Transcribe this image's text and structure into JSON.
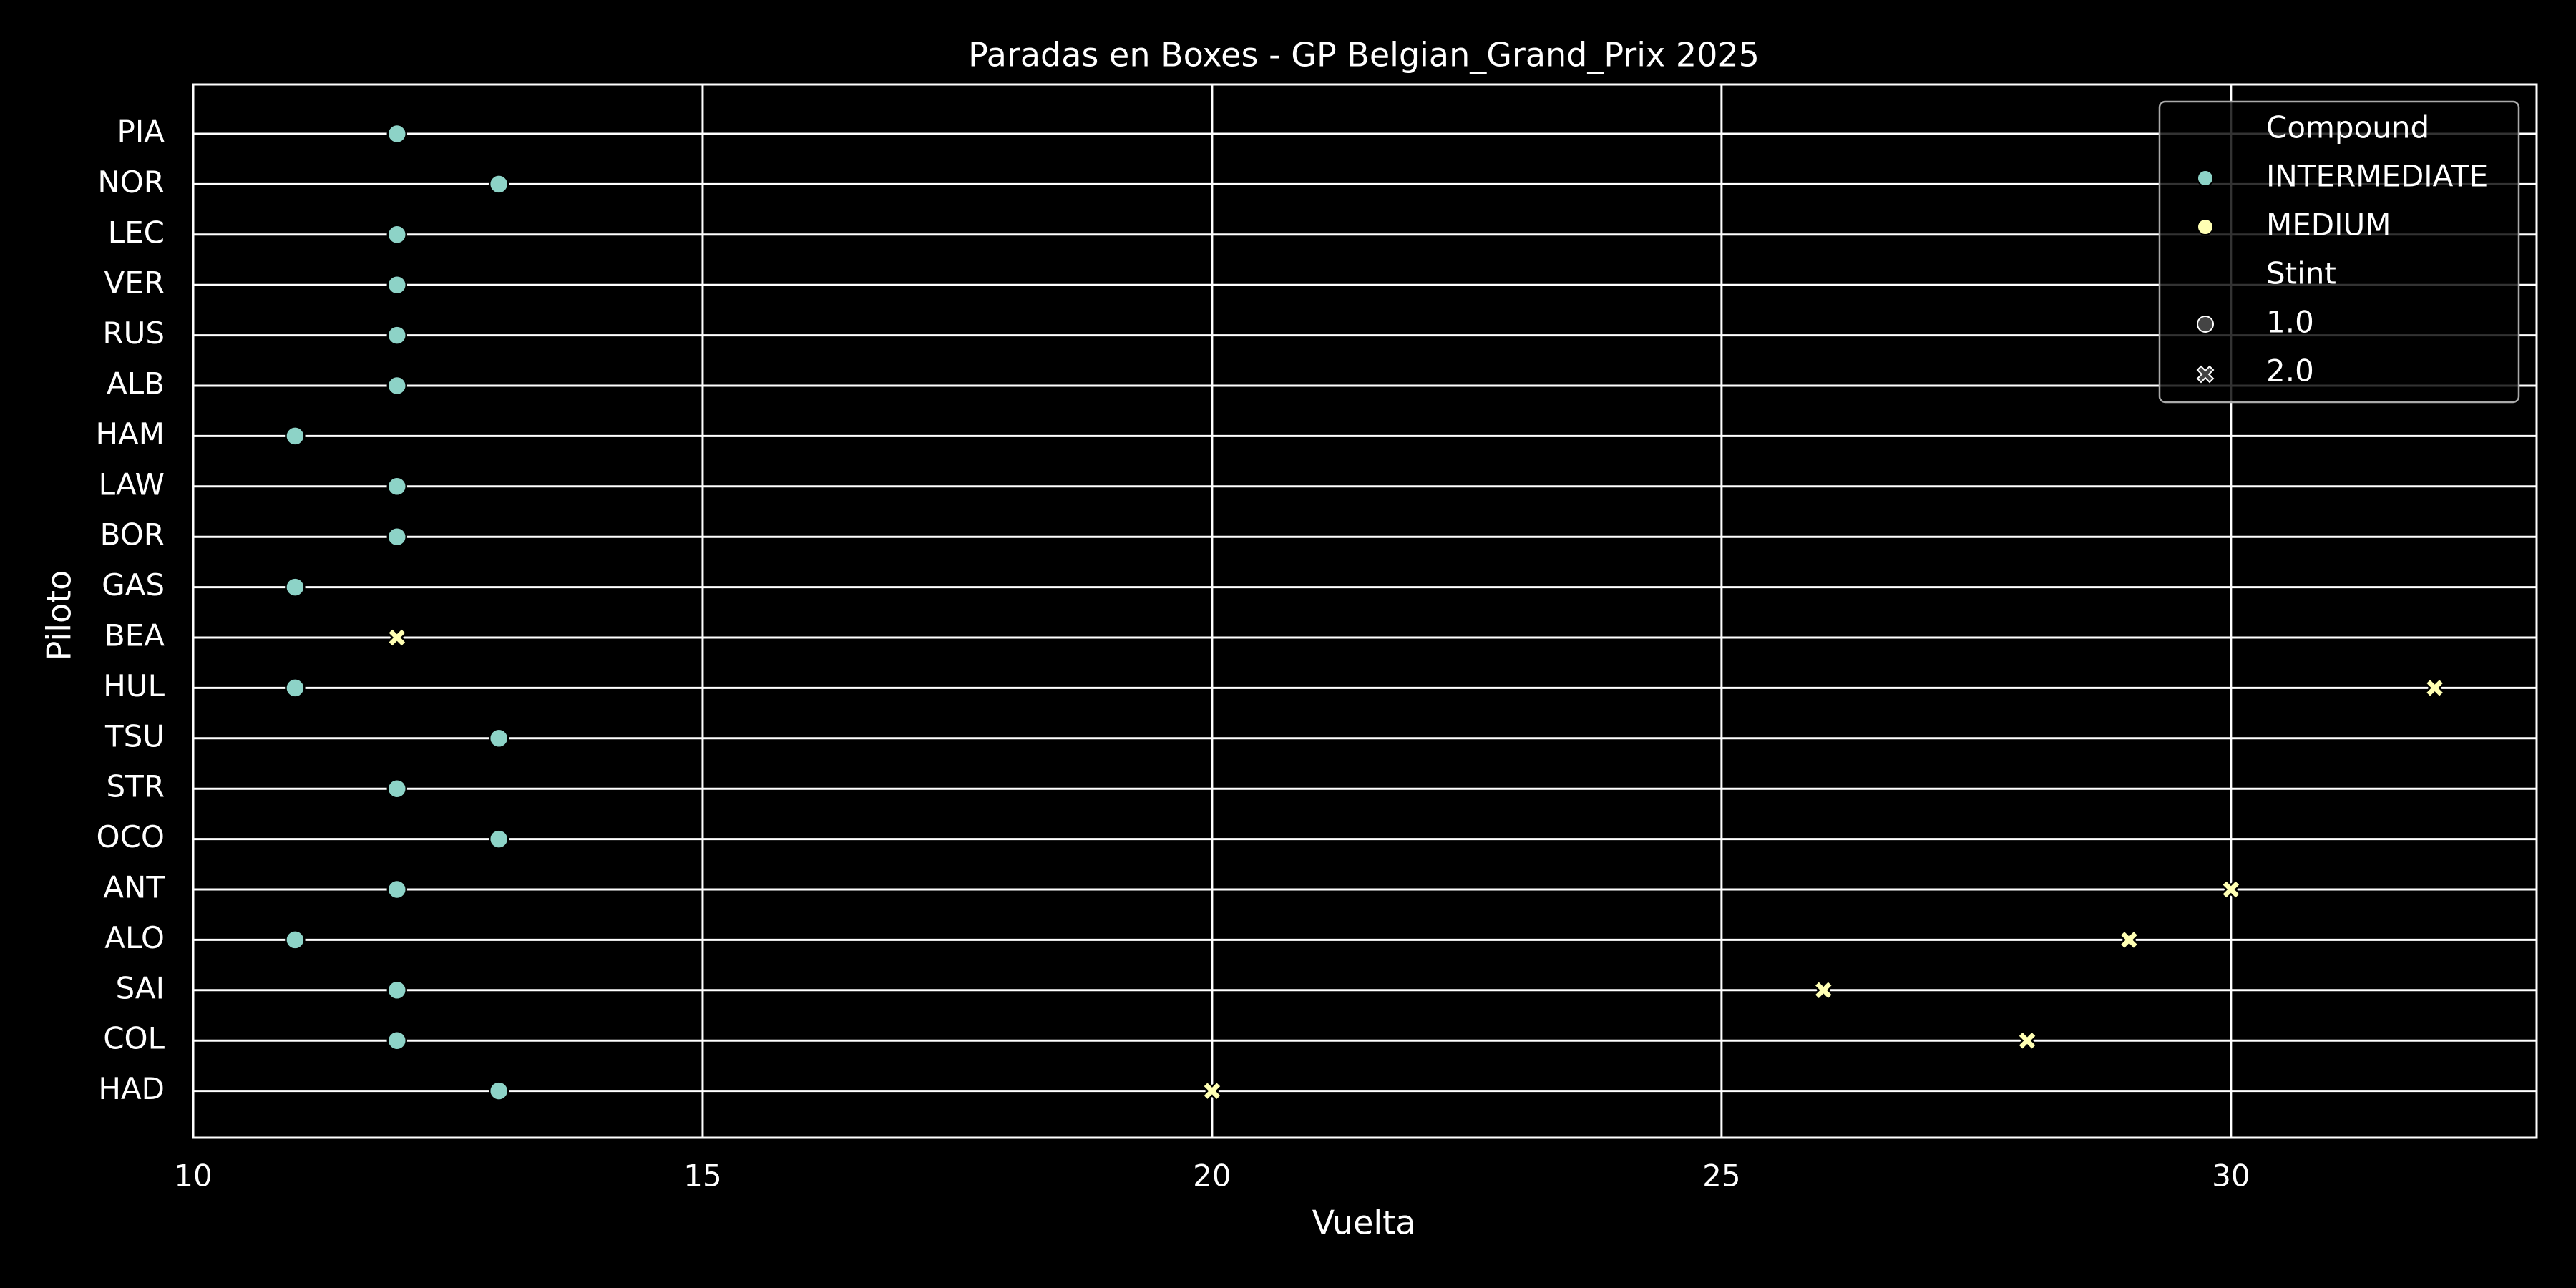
{
  "chart_data": {
    "type": "scatter",
    "title": "Paradas en Boxes - GP Belgian_Grand_Prix 2025",
    "xlabel": "Vuelta",
    "ylabel": "Piloto",
    "xlim": [
      10,
      33
    ],
    "xticks": [
      10,
      15,
      20,
      25,
      30
    ],
    "grid": true,
    "legend_position": "top-right",
    "categories": [
      "PIA",
      "NOR",
      "LEC",
      "VER",
      "RUS",
      "ALB",
      "HAM",
      "LAW",
      "BOR",
      "GAS",
      "BEA",
      "HUL",
      "TSU",
      "STR",
      "OCO",
      "ANT",
      "ALO",
      "SAI",
      "COL",
      "HAD"
    ],
    "legend": {
      "hue_title": "Compound",
      "style_title": "Stint",
      "compounds": [
        {
          "name": "INTERMEDIATE",
          "color": "#8dd3c7"
        },
        {
          "name": "MEDIUM",
          "color": "#ffffb3"
        }
      ],
      "stints": [
        {
          "name": "1.0",
          "marker": "circle"
        },
        {
          "name": "2.0",
          "marker": "x"
        }
      ]
    },
    "points": [
      {
        "driver": "PIA",
        "lap": 12,
        "compound": "INTERMEDIATE",
        "stint": "1.0"
      },
      {
        "driver": "NOR",
        "lap": 13,
        "compound": "INTERMEDIATE",
        "stint": "1.0"
      },
      {
        "driver": "LEC",
        "lap": 12,
        "compound": "INTERMEDIATE",
        "stint": "1.0"
      },
      {
        "driver": "VER",
        "lap": 12,
        "compound": "INTERMEDIATE",
        "stint": "1.0"
      },
      {
        "driver": "RUS",
        "lap": 12,
        "compound": "INTERMEDIATE",
        "stint": "1.0"
      },
      {
        "driver": "ALB",
        "lap": 12,
        "compound": "INTERMEDIATE",
        "stint": "1.0"
      },
      {
        "driver": "HAM",
        "lap": 11,
        "compound": "INTERMEDIATE",
        "stint": "1.0"
      },
      {
        "driver": "LAW",
        "lap": 12,
        "compound": "INTERMEDIATE",
        "stint": "1.0"
      },
      {
        "driver": "BOR",
        "lap": 12,
        "compound": "INTERMEDIATE",
        "stint": "1.0"
      },
      {
        "driver": "GAS",
        "lap": 11,
        "compound": "INTERMEDIATE",
        "stint": "1.0"
      },
      {
        "driver": "BEA",
        "lap": 12,
        "compound": "MEDIUM",
        "stint": "2.0"
      },
      {
        "driver": "HUL",
        "lap": 11,
        "compound": "INTERMEDIATE",
        "stint": "1.0"
      },
      {
        "driver": "HUL",
        "lap": 32,
        "compound": "MEDIUM",
        "stint": "2.0"
      },
      {
        "driver": "TSU",
        "lap": 13,
        "compound": "INTERMEDIATE",
        "stint": "1.0"
      },
      {
        "driver": "STR",
        "lap": 12,
        "compound": "INTERMEDIATE",
        "stint": "1.0"
      },
      {
        "driver": "OCO",
        "lap": 13,
        "compound": "INTERMEDIATE",
        "stint": "1.0"
      },
      {
        "driver": "ANT",
        "lap": 12,
        "compound": "INTERMEDIATE",
        "stint": "1.0"
      },
      {
        "driver": "ANT",
        "lap": 30,
        "compound": "MEDIUM",
        "stint": "2.0"
      },
      {
        "driver": "ALO",
        "lap": 11,
        "compound": "INTERMEDIATE",
        "stint": "1.0"
      },
      {
        "driver": "ALO",
        "lap": 29,
        "compound": "MEDIUM",
        "stint": "2.0"
      },
      {
        "driver": "SAI",
        "lap": 12,
        "compound": "INTERMEDIATE",
        "stint": "1.0"
      },
      {
        "driver": "SAI",
        "lap": 26,
        "compound": "MEDIUM",
        "stint": "2.0"
      },
      {
        "driver": "COL",
        "lap": 12,
        "compound": "INTERMEDIATE",
        "stint": "1.0"
      },
      {
        "driver": "COL",
        "lap": 28,
        "compound": "MEDIUM",
        "stint": "2.0"
      },
      {
        "driver": "HAD",
        "lap": 13,
        "compound": "INTERMEDIATE",
        "stint": "1.0"
      },
      {
        "driver": "HAD",
        "lap": 20,
        "compound": "MEDIUM",
        "stint": "2.0"
      }
    ]
  }
}
